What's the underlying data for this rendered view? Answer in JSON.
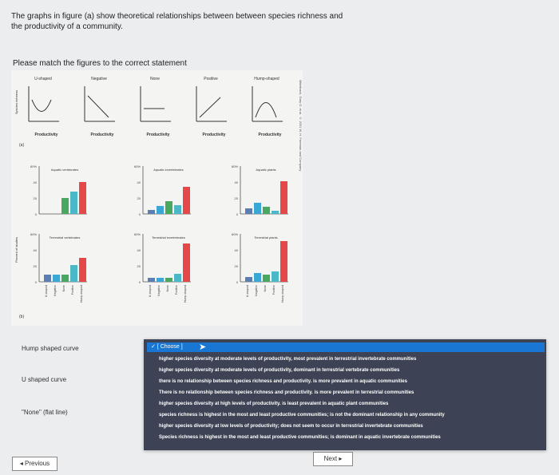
{
  "question": {
    "text": "The graphs in figure (a) show theoretical relationships between between species richness and the productivity of a community.",
    "instruction": "Please match the figures to the correct statement"
  },
  "figure": {
    "labels_a": [
      "U-shaped",
      "Negative",
      "None",
      "Positive",
      "Hump-shaped"
    ],
    "y_axis_a": "Species richness",
    "x_axis_a": "Productivity",
    "panel_a": "(a)",
    "panel_b": "(b)",
    "y_axis_b": "Percent of studies",
    "panels": [
      "Aquatic vertebrates",
      "Aquatic invertebrates",
      "Aquatic plants",
      "Terrestrial vertebrates",
      "Terrestrial invertebrates",
      "Terrestrial plants"
    ],
    "x_categories": [
      "U-shaped",
      "Negative",
      "None",
      "Positive",
      "Hump-shaped"
    ],
    "ticks_b": [
      "60%",
      "40",
      "20",
      "0"
    ],
    "side_caption": "Mittelbach, Gary G. et al. © 2001 W. H. Freeman and Company",
    "colors": {
      "u": "#5a7fb5",
      "neg": "#3aa7d4",
      "none": "#49a85f",
      "pos": "#4ab8c6",
      "hump": "#e44848"
    },
    "chart_data": [
      {
        "type": "bar",
        "title": "Aquatic vertebrates",
        "categories": [
          "U-shaped",
          "Negative",
          "None",
          "Positive",
          "Hump-shaped"
        ],
        "values": [
          0,
          0,
          20,
          28,
          40
        ],
        "ylim": [
          0,
          60
        ]
      },
      {
        "type": "bar",
        "title": "Aquatic invertebrates",
        "categories": [
          "U-shaped",
          "Negative",
          "None",
          "Positive",
          "Hump-shaped"
        ],
        "values": [
          5,
          10,
          16,
          11,
          34
        ],
        "ylim": [
          0,
          60
        ]
      },
      {
        "type": "bar",
        "title": "Aquatic plants",
        "categories": [
          "U-shaped",
          "Negative",
          "None",
          "Positive",
          "Hump-shaped"
        ],
        "values": [
          7,
          14,
          9,
          4,
          41
        ],
        "ylim": [
          0,
          60
        ]
      },
      {
        "type": "bar",
        "title": "Terrestrial vertebrates",
        "categories": [
          "U-shaped",
          "Negative",
          "None",
          "Positive",
          "Hump-shaped"
        ],
        "values": [
          9,
          9,
          9,
          21,
          30
        ],
        "ylim": [
          0,
          60
        ]
      },
      {
        "type": "bar",
        "title": "Terrestrial invertebrates",
        "categories": [
          "U-shaped",
          "Negative",
          "None",
          "Positive",
          "Hump-shaped"
        ],
        "values": [
          5,
          5,
          5,
          10,
          48
        ],
        "ylim": [
          0,
          60
        ]
      },
      {
        "type": "bar",
        "title": "Terrestrial plants",
        "categories": [
          "U-shaped",
          "Negative",
          "None",
          "Positive",
          "Hump-shaped"
        ],
        "values": [
          6,
          11,
          9,
          13,
          51
        ],
        "ylim": [
          0,
          60
        ]
      }
    ]
  },
  "matching": [
    {
      "label": "Hump shaped curve"
    },
    {
      "label": "U shaped curve"
    },
    {
      "label": "\"None\" (flat line)"
    }
  ],
  "dropdown": {
    "selected": "[ Choose ]",
    "options": [
      "higher species diversity at moderate levels of productivity, most prevalent in terrestrial invertebrate communities",
      "higher species diversity at moderate levels of productivity, dominant in terrestrial vertebrate communities",
      "there is no relationship between species richness and productivity. is more prevalent in aquatic communities",
      "There is no relationship between species richness and productivity. is more prevalent in terrestrial communities",
      "higher species diversity at high levels of productivity. is least prevalent in aquatic plant communities",
      "species richness is highest in the most and least productive communities; is not the dominant relationship in any community",
      "higher species diversity at low levels of productivity; does not seem to occur in terrestrial invertebrate communities",
      "Species richness is highest in the most and least productive communities; is dominant in aquatic invertebrate communities"
    ]
  },
  "nav": {
    "next": "Next ▸",
    "previous": "◂ Previous"
  }
}
